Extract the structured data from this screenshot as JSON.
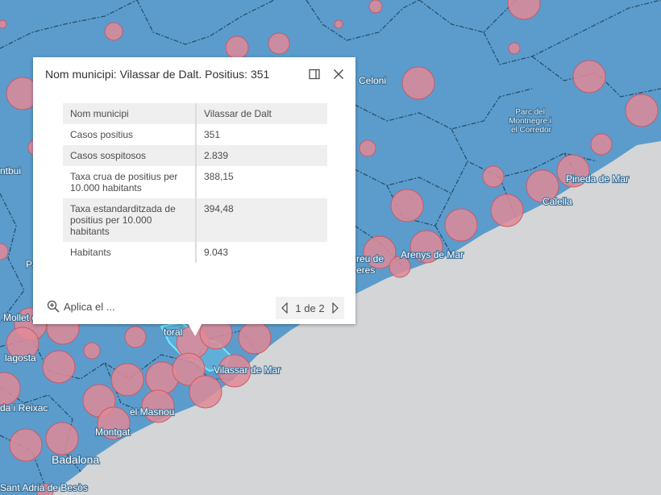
{
  "map": {
    "labels": [
      {
        "text": "Celoni",
        "type": "normal"
      },
      {
        "text": "Parc del Montnegre i el Corredor",
        "type": "park"
      },
      {
        "text": "Pineda de Mar",
        "type": "normal"
      },
      {
        "text": "Calella",
        "type": "normal"
      },
      {
        "text": "Arenys de Mar",
        "type": "normal"
      },
      {
        "text": "reu de",
        "type": "normal"
      },
      {
        "text": "eres",
        "type": "normal"
      },
      {
        "text": "Vilassar de Mar",
        "type": "normal"
      },
      {
        "text": "el Masnou",
        "type": "normal"
      },
      {
        "text": "Montgat",
        "type": "normal"
      },
      {
        "text": "Badalona",
        "type": "big"
      },
      {
        "text": "Sant Adrià de Besòs",
        "type": "normal"
      },
      {
        "text": "da i Reixac",
        "type": "normal"
      },
      {
        "text": "lagosta",
        "type": "normal"
      },
      {
        "text": "Mollet d",
        "type": "normal"
      },
      {
        "text": "ntbui",
        "type": "normal"
      },
      {
        "text": "Pa",
        "type": "normal"
      },
      {
        "text": "toral",
        "type": "normal"
      }
    ],
    "colors": {
      "land": "#5b9ccc",
      "sea": "#d3d5d6",
      "boundary": "#27506f",
      "symbol_fill": "#e08a96",
      "symbol_stroke": "#c75a69",
      "highlight": "#6fe8ff"
    }
  },
  "popup": {
    "title": "Nom municipi: Vilassar de Dalt. Positius: 351",
    "dock_icon": "dock-icon",
    "close_icon": "close-icon",
    "fields": [
      {
        "label": "Nom municipi",
        "value": "Vilassar de Dalt"
      },
      {
        "label": "Casos positius",
        "value": "351"
      },
      {
        "label": "Casos sospitosos",
        "value": "2.839"
      },
      {
        "label": "Taxa crua de positius per 10.000 habitants",
        "value": "388,15"
      },
      {
        "label": "Taxa estandarditzada de positius per 10.000 habitants",
        "value": "394,48"
      },
      {
        "label": "Habitants",
        "value": "9.043"
      }
    ],
    "zoom_action_label": "Aplica el ...",
    "zoom_icon": "zoom-in-icon",
    "pager": {
      "text": "1 de 2",
      "prev_icon": "triangle-left-icon",
      "next_icon": "triangle-right-icon"
    }
  }
}
